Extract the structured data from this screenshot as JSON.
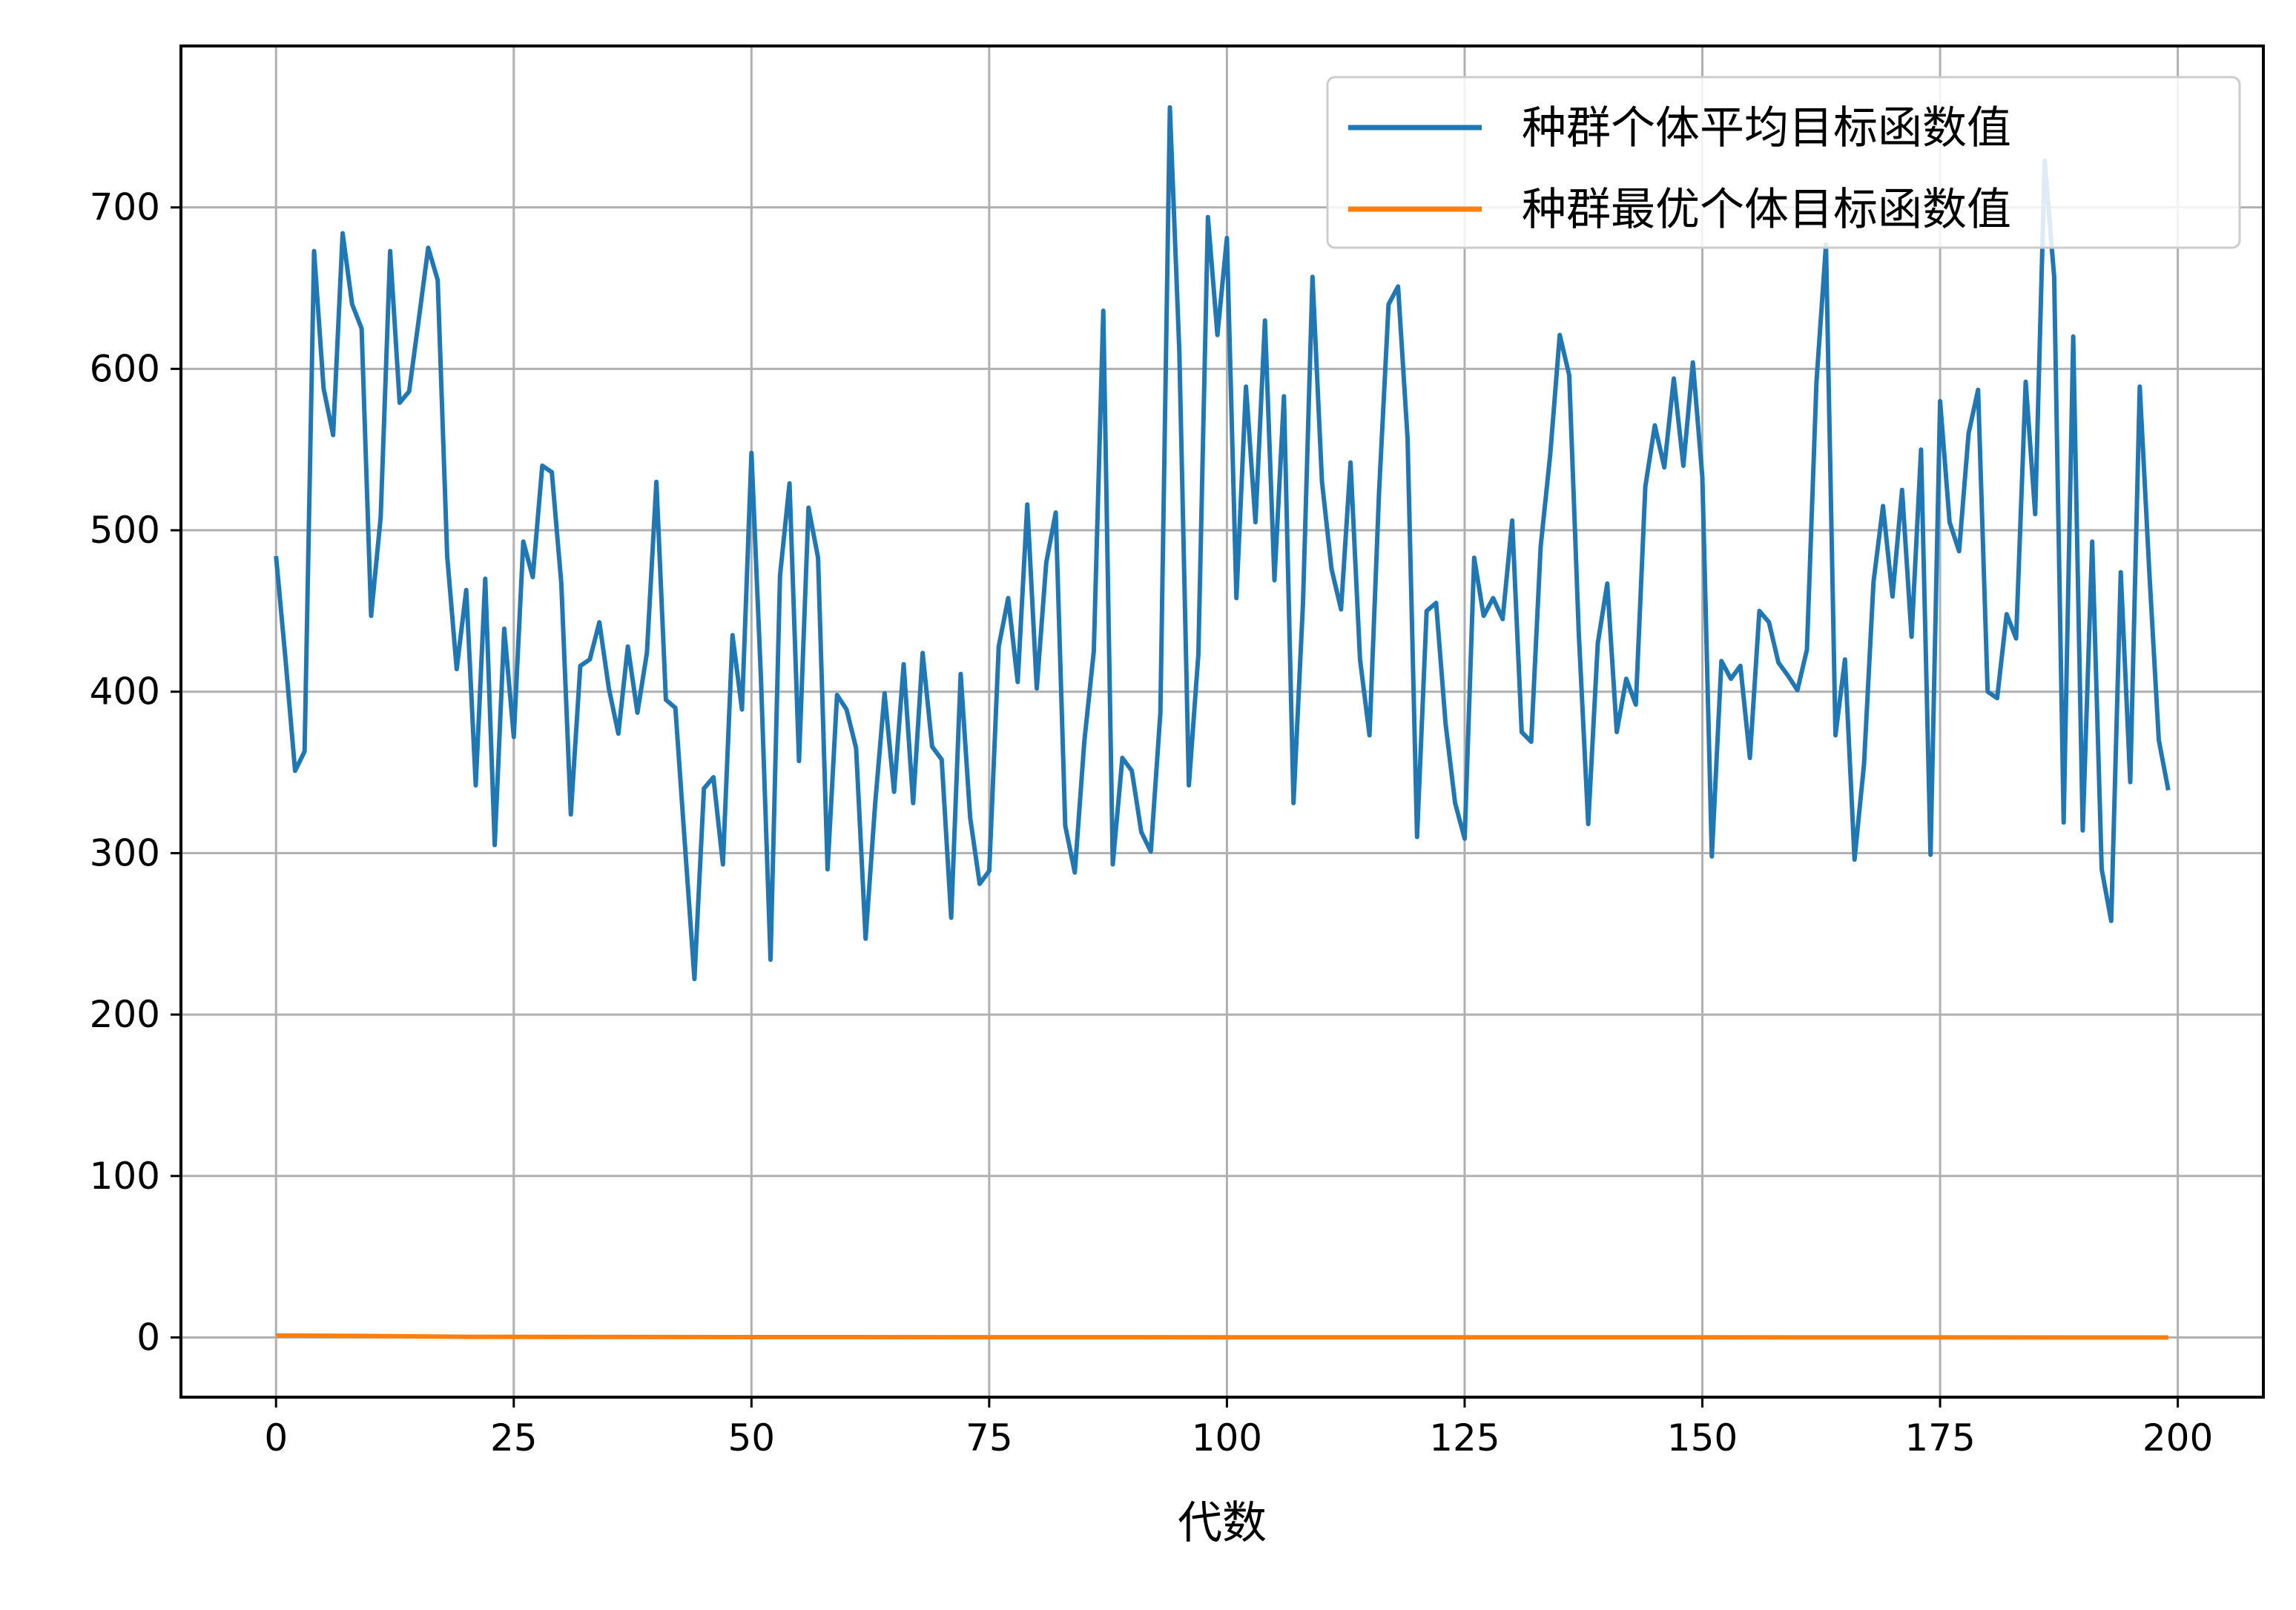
{
  "chart_data": {
    "type": "line",
    "title": "",
    "xlabel": "代数",
    "ylabel": "",
    "xlim": [
      -10,
      209
    ],
    "ylim": [
      -37,
      800
    ],
    "xticks": [
      0,
      25,
      50,
      75,
      100,
      125,
      150,
      175,
      200
    ],
    "yticks": [
      0,
      100,
      200,
      300,
      400,
      500,
      600,
      700
    ],
    "grid": true,
    "legend_position": "top-right",
    "series": [
      {
        "name": "种群个体平均目标函数值",
        "color": "#1f77b4",
        "x": [
          0,
          1,
          2,
          3,
          4,
          5,
          6,
          7,
          8,
          9,
          10,
          11,
          12,
          13,
          14,
          15,
          16,
          17,
          18,
          19,
          20,
          21,
          22,
          23,
          24,
          25,
          26,
          27,
          28,
          29,
          30,
          31,
          32,
          33,
          34,
          35,
          36,
          37,
          38,
          39,
          40,
          41,
          42,
          43,
          44,
          45,
          46,
          47,
          48,
          49,
          50,
          51,
          52,
          53,
          54,
          55,
          56,
          57,
          58,
          59,
          60,
          61,
          62,
          63,
          64,
          65,
          66,
          67,
          68,
          69,
          70,
          71,
          72,
          73,
          74,
          75,
          76,
          77,
          78,
          79,
          80,
          81,
          82,
          83,
          84,
          85,
          86,
          87,
          88,
          89,
          90,
          91,
          92,
          93,
          94,
          95,
          96,
          97,
          98,
          99,
          100,
          101,
          102,
          103,
          104,
          105,
          106,
          107,
          108,
          109,
          110,
          111,
          112,
          113,
          114,
          115,
          116,
          117,
          118,
          119,
          120,
          121,
          122,
          123,
          124,
          125,
          126,
          127,
          128,
          129,
          130,
          131,
          132,
          133,
          134,
          135,
          136,
          137,
          138,
          139,
          140,
          141,
          142,
          143,
          144,
          145,
          146,
          147,
          148,
          149,
          150,
          151,
          152,
          153,
          154,
          155,
          156,
          157,
          158,
          159,
          160,
          161,
          162,
          163,
          164,
          165,
          166,
          167,
          168,
          169,
          170,
          171,
          172,
          173,
          174,
          175,
          176,
          177,
          178,
          179,
          180,
          181,
          182,
          183,
          184,
          185,
          186,
          187,
          188,
          189,
          190,
          191,
          192,
          193,
          194,
          195,
          196,
          197,
          198,
          199
        ],
        "values": [
          484,
          420,
          351,
          363,
          673,
          588,
          559,
          684,
          640,
          625,
          447,
          508,
          673,
          579,
          586,
          630,
          675,
          655,
          484,
          414,
          463,
          342,
          470,
          305,
          439,
          372,
          493,
          471,
          540,
          536,
          467,
          324,
          416,
          420,
          443,
          402,
          374,
          428,
          387,
          424,
          530,
          395,
          390,
          305,
          222,
          340,
          347,
          293,
          435,
          389,
          548,
          408,
          234,
          472,
          529,
          357,
          514,
          483,
          290,
          398,
          389,
          365,
          247,
          330,
          399,
          338,
          417,
          331,
          424,
          366,
          358,
          260,
          411,
          322,
          281,
          289,
          428,
          458,
          406,
          516,
          402,
          480,
          511,
          317,
          288,
          369,
          425,
          636,
          293,
          359,
          351,
          313,
          301,
          387,
          762,
          610,
          342,
          423,
          694,
          621,
          681,
          458,
          589,
          505,
          630,
          469,
          583,
          331,
          455,
          657,
          530,
          476,
          451,
          542,
          420,
          373,
          524,
          640,
          651,
          557,
          310,
          450,
          455,
          380,
          331,
          309,
          483,
          447,
          458,
          445,
          506,
          375,
          369,
          490,
          547,
          621,
          596,
          437,
          318,
          430,
          467,
          375,
          408,
          392,
          527,
          565,
          539,
          594,
          540,
          604,
          533,
          298,
          419,
          408,
          416,
          359,
          450,
          443,
          418,
          410,
          401,
          426,
          592,
          677,
          373,
          420,
          296,
          355,
          468,
          515,
          459,
          525,
          434,
          550,
          299,
          580,
          505,
          487,
          560,
          587,
          400,
          396,
          448,
          433,
          592,
          510,
          729,
          657,
          319,
          620,
          314,
          493,
          290,
          258,
          474,
          344,
          589,
          475,
          370,
          339
        ]
      },
      {
        "name": "种群最优个体目标函数值",
        "color": "#ff7f0e",
        "x": [
          0,
          10,
          20,
          50,
          100,
          150,
          199
        ],
        "values": [
          1.2,
          0.9,
          0.4,
          0.2,
          0.1,
          0.05,
          0.0
        ]
      }
    ]
  }
}
